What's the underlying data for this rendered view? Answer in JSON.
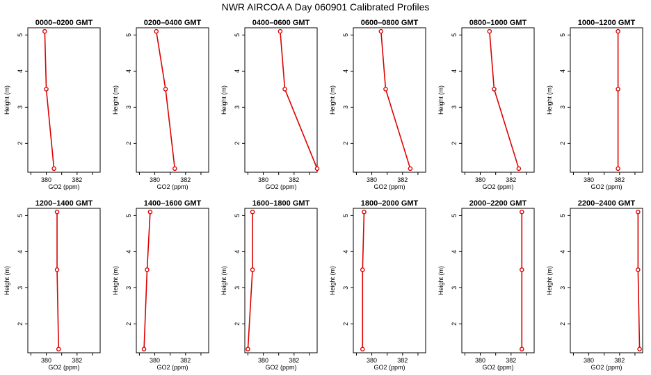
{
  "title": "NWR AIRCOA A  Day 060901  Calibrated Profiles",
  "colors": {
    "series": "#dd0000",
    "axis": "#000000",
    "background": "#ffffff"
  },
  "chart_data": [
    {
      "type": "line",
      "title": "0000–0200 GMT",
      "x": [
        380.5,
        380.0,
        379.9
      ],
      "y": [
        1.3,
        3.5,
        5.1
      ],
      "xlabel": "GO2 (ppm)",
      "ylabel": "Height (m)",
      "xlim": [
        378.8,
        383.5
      ],
      "ylim": [
        1.2,
        5.2
      ],
      "xticks": [
        "380",
        "382"
      ],
      "yticks": [
        "2",
        "3",
        "4",
        "5"
      ]
    },
    {
      "type": "line",
      "title": "0200–0400 GMT",
      "x": [
        381.3,
        380.7,
        380.1
      ],
      "y": [
        1.3,
        3.5,
        5.1
      ],
      "xlabel": "GO2 (ppm)",
      "ylabel": "Height (m)",
      "xlim": [
        378.8,
        383.5
      ],
      "ylim": [
        1.2,
        5.2
      ],
      "xticks": [
        "380",
        "382"
      ],
      "yticks": [
        "2",
        "3",
        "4",
        "5"
      ]
    },
    {
      "type": "line",
      "title": "0400–0600 GMT",
      "x": [
        383.5,
        381.4,
        381.1
      ],
      "y": [
        1.3,
        3.5,
        5.1
      ],
      "xlabel": "GO2 (ppm)",
      "ylabel": "Height (m)",
      "xlim": [
        378.8,
        383.5
      ],
      "ylim": [
        1.2,
        5.2
      ],
      "xticks": [
        "380",
        "382"
      ],
      "yticks": [
        "2",
        "3",
        "4",
        "5"
      ]
    },
    {
      "type": "line",
      "title": "0600–0800 GMT",
      "x": [
        382.5,
        380.9,
        380.6
      ],
      "y": [
        1.3,
        3.5,
        5.1
      ],
      "xlabel": "GO2 (ppm)",
      "ylabel": "Height (m)",
      "xlim": [
        378.8,
        383.5
      ],
      "ylim": [
        1.2,
        5.2
      ],
      "xticks": [
        "380",
        "382"
      ],
      "yticks": [
        "2",
        "3",
        "4",
        "5"
      ]
    },
    {
      "type": "line",
      "title": "0800–1000 GMT",
      "x": [
        382.5,
        380.9,
        380.6
      ],
      "y": [
        1.3,
        3.5,
        5.1
      ],
      "xlabel": "GO2 (ppm)",
      "ylabel": "Height (m)",
      "xlim": [
        378.8,
        383.5
      ],
      "ylim": [
        1.2,
        5.2
      ],
      "xticks": [
        "380",
        "382"
      ],
      "yticks": [
        "2",
        "3",
        "4",
        "5"
      ]
    },
    {
      "type": "line",
      "title": "1000–1200 GMT",
      "x": [
        381.9,
        381.9,
        381.9
      ],
      "y": [
        1.3,
        3.5,
        5.1
      ],
      "xlabel": "GO2 (ppm)",
      "ylabel": "Height (m)",
      "xlim": [
        378.8,
        383.5
      ],
      "ylim": [
        1.2,
        5.2
      ],
      "xticks": [
        "380",
        "382"
      ],
      "yticks": [
        "2",
        "3",
        "4",
        "5"
      ]
    },
    {
      "type": "line",
      "title": "1200–1400 GMT",
      "x": [
        380.8,
        380.7,
        380.7
      ],
      "y": [
        1.3,
        3.5,
        5.1
      ],
      "xlabel": "GO2 (ppm)",
      "ylabel": "Height (m)",
      "xlim": [
        378.8,
        383.5
      ],
      "ylim": [
        1.2,
        5.2
      ],
      "xticks": [
        "380",
        "382"
      ],
      "yticks": [
        "2",
        "3",
        "4",
        "5"
      ]
    },
    {
      "type": "line",
      "title": "1400–1600 GMT",
      "x": [
        379.3,
        379.5,
        379.7
      ],
      "y": [
        1.3,
        3.5,
        5.1
      ],
      "xlabel": "GO2 (ppm)",
      "ylabel": "Height (m)",
      "xlim": [
        378.8,
        383.5
      ],
      "ylim": [
        1.2,
        5.2
      ],
      "xticks": [
        "380",
        "382"
      ],
      "yticks": [
        "2",
        "3",
        "4",
        "5"
      ]
    },
    {
      "type": "line",
      "title": "1600–1800 GMT",
      "x": [
        379.0,
        379.3,
        379.3
      ],
      "y": [
        1.3,
        3.5,
        5.1
      ],
      "xlabel": "GO2 (ppm)",
      "ylabel": "Height (m)",
      "xlim": [
        378.8,
        383.5
      ],
      "ylim": [
        1.2,
        5.2
      ],
      "xticks": [
        "380",
        "382"
      ],
      "yticks": [
        "2",
        "3",
        "4",
        "5"
      ]
    },
    {
      "type": "line",
      "title": "1800–2000 GMT",
      "x": [
        379.4,
        379.4,
        379.5
      ],
      "y": [
        1.3,
        3.5,
        5.1
      ],
      "xlabel": "GO2 (ppm)",
      "ylabel": "Height (m)",
      "xlim": [
        378.8,
        383.5
      ],
      "ylim": [
        1.2,
        5.2
      ],
      "xticks": [
        "380",
        "382"
      ],
      "yticks": [
        "2",
        "3",
        "4",
        "5"
      ]
    },
    {
      "type": "line",
      "title": "2000–2200 GMT",
      "x": [
        382.7,
        382.7,
        382.7
      ],
      "y": [
        1.3,
        3.5,
        5.1
      ],
      "xlabel": "GO2 (ppm)",
      "ylabel": "Height (m)",
      "xlim": [
        378.8,
        383.5
      ],
      "ylim": [
        1.2,
        5.2
      ],
      "xticks": [
        "380",
        "382"
      ],
      "yticks": [
        "2",
        "3",
        "4",
        "5"
      ]
    },
    {
      "type": "line",
      "title": "2200–2400 GMT",
      "x": [
        383.3,
        383.2,
        383.2
      ],
      "y": [
        1.3,
        3.5,
        5.1
      ],
      "xlabel": "GO2 (ppm)",
      "ylabel": "Height (m)",
      "xlim": [
        378.8,
        383.5
      ],
      "ylim": [
        1.2,
        5.2
      ],
      "xticks": [
        "380",
        "382"
      ],
      "yticks": [
        "2",
        "3",
        "4",
        "5"
      ]
    }
  ]
}
